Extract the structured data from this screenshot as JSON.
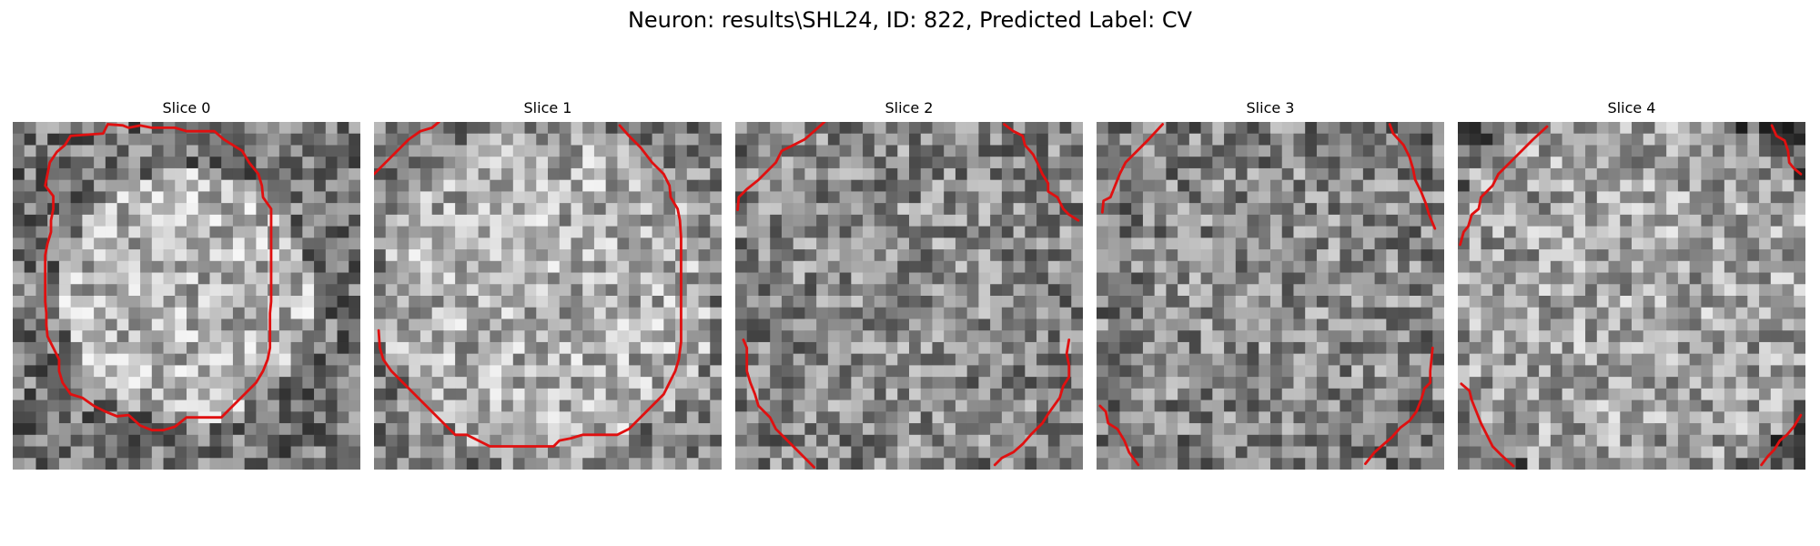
{
  "figure": {
    "title": "Neuron: results\\SHL24, ID: 822, Predicted Label: CV"
  },
  "colors": {
    "contour": "#e01010",
    "background": "#ffffff",
    "colormap": "gray"
  },
  "grid_size": 30,
  "panels": [
    {
      "title": "Slice 0",
      "brightness_profile": "bright-disc-center",
      "contours": [
        [
          [
            8.2,
            0.2
          ],
          [
            7.8,
            1.0
          ],
          [
            5.0,
            1.2
          ],
          [
            4.5,
            2.0
          ],
          [
            3.8,
            2.6
          ],
          [
            3.2,
            3.5
          ],
          [
            3.0,
            4.5
          ],
          [
            2.8,
            5.5
          ],
          [
            3.5,
            6.4
          ],
          [
            3.5,
            7.5
          ],
          [
            3.3,
            8.5
          ],
          [
            3.3,
            9.5
          ],
          [
            3.0,
            10.5
          ],
          [
            2.8,
            11.5
          ],
          [
            2.8,
            12.5
          ],
          [
            2.8,
            13.5
          ],
          [
            2.8,
            14.5
          ],
          [
            2.8,
            15.5
          ],
          [
            2.9,
            16.5
          ],
          [
            2.9,
            17.5
          ],
          [
            3.0,
            18.5
          ],
          [
            3.5,
            19.5
          ],
          [
            4.0,
            20.5
          ],
          [
            4.0,
            21.5
          ],
          [
            4.3,
            22.5
          ],
          [
            5.0,
            23.5
          ],
          [
            6.0,
            23.8
          ],
          [
            7.0,
            24.5
          ],
          [
            8.0,
            25.0
          ],
          [
            9.0,
            25.4
          ],
          [
            10.0,
            25.3
          ],
          [
            11.0,
            26.2
          ],
          [
            12.0,
            26.6
          ],
          [
            13.0,
            26.6
          ],
          [
            14.0,
            26.3
          ],
          [
            15.0,
            25.5
          ],
          [
            16.0,
            25.5
          ],
          [
            17.0,
            25.5
          ],
          [
            18.0,
            25.5
          ],
          [
            19.0,
            24.5
          ],
          [
            20.0,
            23.5
          ],
          [
            21.0,
            22.5
          ],
          [
            21.6,
            21.5
          ],
          [
            22.0,
            20.5
          ],
          [
            22.2,
            19.5
          ],
          [
            22.2,
            18.5
          ],
          [
            22.2,
            17.5
          ],
          [
            22.2,
            16.5
          ],
          [
            22.3,
            15.5
          ],
          [
            22.3,
            14.5
          ],
          [
            22.3,
            13.5
          ],
          [
            22.3,
            12.5
          ],
          [
            22.3,
            11.5
          ],
          [
            22.3,
            10.5
          ],
          [
            22.3,
            9.5
          ],
          [
            22.3,
            8.5
          ],
          [
            22.3,
            7.5
          ],
          [
            21.6,
            6.5
          ],
          [
            21.5,
            5.5
          ],
          [
            21.2,
            4.5
          ],
          [
            20.4,
            3.5
          ],
          [
            19.8,
            2.5
          ],
          [
            19.0,
            2.0
          ],
          [
            18.2,
            1.5
          ],
          [
            17.4,
            0.8
          ],
          [
            16.0,
            0.8
          ],
          [
            15.0,
            0.8
          ],
          [
            14.0,
            0.5
          ],
          [
            13.0,
            0.5
          ],
          [
            12.0,
            0.5
          ],
          [
            11.0,
            0.3
          ],
          [
            10.0,
            0.5
          ],
          [
            9.5,
            0.3
          ],
          [
            8.2,
            0.2
          ]
        ]
      ]
    },
    {
      "title": "Slice 1",
      "brightness_profile": "bright-large-disc",
      "contours": [
        [
          [
            0.0,
            4.5
          ],
          [
            1.0,
            3.5
          ],
          [
            2.0,
            2.5
          ],
          [
            3.0,
            1.5
          ],
          [
            4.0,
            0.8
          ],
          [
            5.0,
            0.5
          ],
          [
            5.6,
            0.0
          ]
        ],
        [
          [
            21.2,
            0.3
          ],
          [
            22.0,
            1.2
          ],
          [
            23.0,
            2.2
          ],
          [
            24.0,
            3.5
          ],
          [
            25.0,
            4.5
          ],
          [
            25.5,
            5.5
          ],
          [
            25.6,
            6.5
          ],
          [
            26.2,
            7.5
          ],
          [
            26.4,
            8.5
          ],
          [
            26.5,
            10.0
          ],
          [
            26.5,
            11.5
          ],
          [
            26.5,
            13.0
          ],
          [
            26.5,
            14.5
          ],
          [
            26.5,
            16.0
          ],
          [
            26.5,
            17.5
          ],
          [
            26.5,
            19.0
          ],
          [
            26.3,
            20.5
          ],
          [
            26.0,
            21.5
          ],
          [
            25.5,
            22.5
          ],
          [
            25.0,
            23.5
          ],
          [
            24.0,
            24.5
          ],
          [
            23.0,
            25.5
          ],
          [
            22.0,
            26.5
          ],
          [
            21.0,
            27.0
          ],
          [
            20.0,
            27.0
          ],
          [
            19.0,
            27.0
          ],
          [
            18.0,
            27.0
          ],
          [
            17.0,
            27.3
          ],
          [
            16.0,
            27.5
          ],
          [
            15.5,
            28.0
          ],
          [
            15.0,
            28.0
          ],
          [
            14.0,
            28.0
          ],
          [
            13.0,
            28.0
          ],
          [
            12.0,
            28.0
          ],
          [
            11.0,
            28.0
          ],
          [
            10.0,
            28.0
          ],
          [
            9.0,
            27.5
          ],
          [
            8.0,
            27.0
          ],
          [
            7.0,
            27.0
          ],
          [
            6.5,
            26.5
          ],
          [
            5.5,
            25.5
          ],
          [
            4.5,
            24.5
          ],
          [
            3.5,
            23.5
          ],
          [
            2.5,
            22.5
          ],
          [
            1.5,
            21.5
          ],
          [
            0.8,
            20.5
          ],
          [
            0.5,
            19.5
          ],
          [
            0.4,
            18.0
          ]
        ]
      ]
    },
    {
      "title": "Slice 2",
      "brightness_profile": "uniform-noise",
      "contours": [
        [
          [
            0.2,
            7.6
          ],
          [
            0.3,
            6.5
          ],
          [
            1.0,
            5.8
          ],
          [
            2.0,
            5.0
          ],
          [
            2.8,
            4.2
          ],
          [
            3.5,
            3.5
          ],
          [
            4.0,
            2.5
          ],
          [
            5.0,
            2.0
          ],
          [
            6.0,
            1.5
          ],
          [
            6.8,
            0.8
          ],
          [
            7.7,
            0.0
          ]
        ],
        [
          [
            23.2,
            0.2
          ],
          [
            24.0,
            0.8
          ],
          [
            24.8,
            1.2
          ],
          [
            25.0,
            2.0
          ],
          [
            25.7,
            2.8
          ],
          [
            26.2,
            3.8
          ],
          [
            26.5,
            4.5
          ],
          [
            27.0,
            5.3
          ],
          [
            27.0,
            6.0
          ],
          [
            27.8,
            6.5
          ],
          [
            28.3,
            7.5
          ],
          [
            28.8,
            8.0
          ],
          [
            29.6,
            8.5
          ]
        ],
        [
          [
            0.7,
            18.8
          ],
          [
            1.0,
            19.5
          ],
          [
            1.0,
            21.5
          ],
          [
            1.3,
            22.5
          ],
          [
            1.7,
            23.5
          ],
          [
            2.0,
            24.5
          ],
          [
            3.0,
            25.5
          ],
          [
            3.5,
            26.5
          ],
          [
            4.5,
            27.5
          ],
          [
            5.5,
            28.5
          ],
          [
            6.8,
            29.8
          ]
        ],
        [
          [
            28.8,
            18.8
          ],
          [
            28.6,
            20.0
          ],
          [
            28.8,
            21.0
          ],
          [
            28.8,
            22.0
          ],
          [
            28.3,
            22.8
          ],
          [
            28.0,
            23.8
          ],
          [
            27.5,
            24.5
          ],
          [
            27.0,
            25.2
          ],
          [
            26.5,
            26.0
          ],
          [
            25.5,
            27.0
          ],
          [
            24.8,
            27.8
          ],
          [
            24.0,
            28.5
          ],
          [
            23.0,
            29.0
          ],
          [
            22.4,
            29.6
          ]
        ]
      ]
    },
    {
      "title": "Slice 3",
      "brightness_profile": "uniform-noise-dark-edges",
      "contours": [
        [
          [
            0.5,
            7.8
          ],
          [
            0.6,
            6.8
          ],
          [
            1.2,
            6.5
          ],
          [
            1.6,
            5.5
          ],
          [
            2.0,
            4.5
          ],
          [
            2.5,
            3.5
          ],
          [
            3.5,
            2.5
          ],
          [
            4.5,
            1.5
          ],
          [
            5.7,
            0.2
          ]
        ],
        [
          [
            25.3,
            0.2
          ],
          [
            25.6,
            1.0
          ],
          [
            26.5,
            2.0
          ],
          [
            27.0,
            3.0
          ],
          [
            27.3,
            4.0
          ],
          [
            27.5,
            5.0
          ],
          [
            28.0,
            6.0
          ],
          [
            28.4,
            7.0
          ],
          [
            28.7,
            8.0
          ],
          [
            29.2,
            9.2
          ]
        ],
        [
          [
            0.3,
            24.5
          ],
          [
            0.8,
            25.0
          ],
          [
            1.0,
            26.0
          ],
          [
            1.8,
            26.5
          ],
          [
            2.4,
            27.5
          ],
          [
            2.8,
            28.5
          ],
          [
            3.6,
            29.6
          ]
        ],
        [
          [
            29.0,
            19.5
          ],
          [
            28.9,
            20.5
          ],
          [
            28.8,
            21.5
          ],
          [
            28.8,
            22.5
          ],
          [
            28.3,
            23.0
          ],
          [
            28.0,
            24.0
          ],
          [
            27.6,
            25.0
          ],
          [
            27.0,
            25.8
          ],
          [
            26.2,
            26.4
          ],
          [
            25.5,
            27.2
          ],
          [
            24.8,
            27.8
          ],
          [
            24.0,
            28.5
          ],
          [
            23.2,
            29.5
          ]
        ]
      ]
    },
    {
      "title": "Slice 4",
      "brightness_profile": "bright-outside-dark-corners",
      "contours": [
        [
          [
            0.2,
            10.6
          ],
          [
            0.5,
            9.5
          ],
          [
            0.9,
            9.0
          ],
          [
            1.2,
            8.0
          ],
          [
            1.8,
            7.5
          ],
          [
            2.0,
            6.5
          ],
          [
            3.0,
            5.5
          ],
          [
            3.5,
            4.5
          ],
          [
            4.5,
            3.5
          ],
          [
            5.5,
            2.5
          ],
          [
            6.5,
            1.5
          ],
          [
            7.7,
            0.4
          ]
        ],
        [
          [
            27.1,
            0.3
          ],
          [
            27.5,
            1.2
          ],
          [
            28.2,
            1.6
          ],
          [
            28.5,
            2.5
          ],
          [
            28.6,
            3.5
          ],
          [
            29.0,
            4.0
          ],
          [
            29.6,
            4.5
          ]
        ],
        [
          [
            0.3,
            22.6
          ],
          [
            1.0,
            23.2
          ],
          [
            1.2,
            24.0
          ],
          [
            1.6,
            25.0
          ],
          [
            2.0,
            26.0
          ],
          [
            2.5,
            27.0
          ],
          [
            3.0,
            28.0
          ],
          [
            3.8,
            28.8
          ],
          [
            4.8,
            29.7
          ]
        ],
        [
          [
            29.6,
            25.3
          ],
          [
            29.0,
            26.3
          ],
          [
            28.4,
            27.0
          ],
          [
            27.8,
            27.5
          ],
          [
            27.3,
            28.3
          ],
          [
            26.8,
            28.8
          ],
          [
            26.2,
            29.6
          ]
        ]
      ]
    }
  ]
}
